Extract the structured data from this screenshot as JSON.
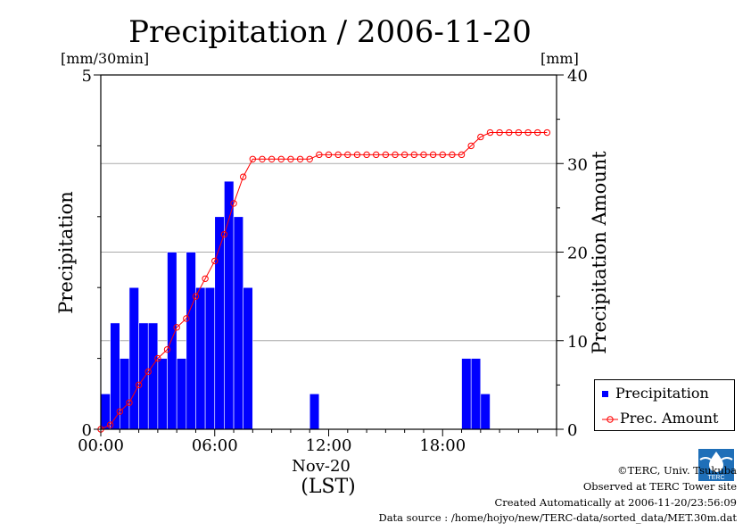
{
  "chart_data": {
    "title": "Precipitation / 2006-11-20",
    "type": "bar+line",
    "y_left": {
      "label": "Precipitation",
      "unit": "[mm/30min]",
      "lim": [
        0,
        5
      ],
      "ticks": [
        "0",
        "5"
      ]
    },
    "y_right": {
      "label": "Precipitation Amount",
      "unit": "[mm]",
      "lim": [
        0,
        40
      ],
      "ticks": [
        "0",
        "10",
        "20",
        "30",
        "40"
      ]
    },
    "x": {
      "ticks": [
        "00:00",
        "06:00",
        "12:00",
        "18:00"
      ],
      "tick_hours": [
        0,
        6,
        12,
        18
      ],
      "date_label": "Nov-20",
      "unit_label": "(LST)",
      "range_hours": [
        0,
        24
      ]
    },
    "grid": "horizontal",
    "series": [
      {
        "name": "Precipitation",
        "kind": "bar",
        "color": "#0000ff",
        "interval_hours": 0.5,
        "values": [
          0.5,
          1.5,
          1.0,
          2.0,
          1.5,
          1.5,
          1.0,
          2.5,
          1.0,
          2.5,
          2.0,
          2.0,
          3.0,
          3.5,
          3.0,
          2.0,
          0,
          0,
          0,
          0,
          0,
          0,
          0.5,
          0,
          0,
          0,
          0,
          0,
          0,
          0,
          0,
          0,
          0,
          0,
          0,
          0,
          0,
          0,
          1.0,
          1.0,
          0.5,
          0,
          0,
          0,
          0,
          0,
          0,
          0
        ]
      },
      {
        "name": "Prec. Amount",
        "kind": "line",
        "color": "#ff0000",
        "interval_hours": 0.5,
        "values": [
          0,
          0.5,
          2.0,
          3.0,
          5.0,
          6.5,
          8.0,
          9.0,
          11.5,
          12.5,
          15.0,
          17.0,
          19.0,
          22.0,
          25.5,
          28.5,
          30.5,
          30.5,
          30.5,
          30.5,
          30.5,
          30.5,
          30.5,
          31.0,
          31.0,
          31.0,
          31.0,
          31.0,
          31.0,
          31.0,
          31.0,
          31.0,
          31.0,
          31.0,
          31.0,
          31.0,
          31.0,
          31.0,
          31.0,
          32.0,
          33.0,
          33.5,
          33.5,
          33.5,
          33.5,
          33.5,
          33.5,
          33.5
        ]
      }
    ],
    "legend": {
      "position": "bottom-right",
      "entries": [
        "Precipitation",
        "Prec. Amount"
      ]
    }
  },
  "footer": {
    "copyright": "©TERC, Univ. Tsukuba",
    "site": "Observed at TERC Tower site",
    "created": "Created Automatically at 2006-11-20/23:56:09",
    "source": "Data source : /home/hojyo/new/TERC-data/sorted_data/MET.30m.dat",
    "logo_text": "TERC"
  }
}
